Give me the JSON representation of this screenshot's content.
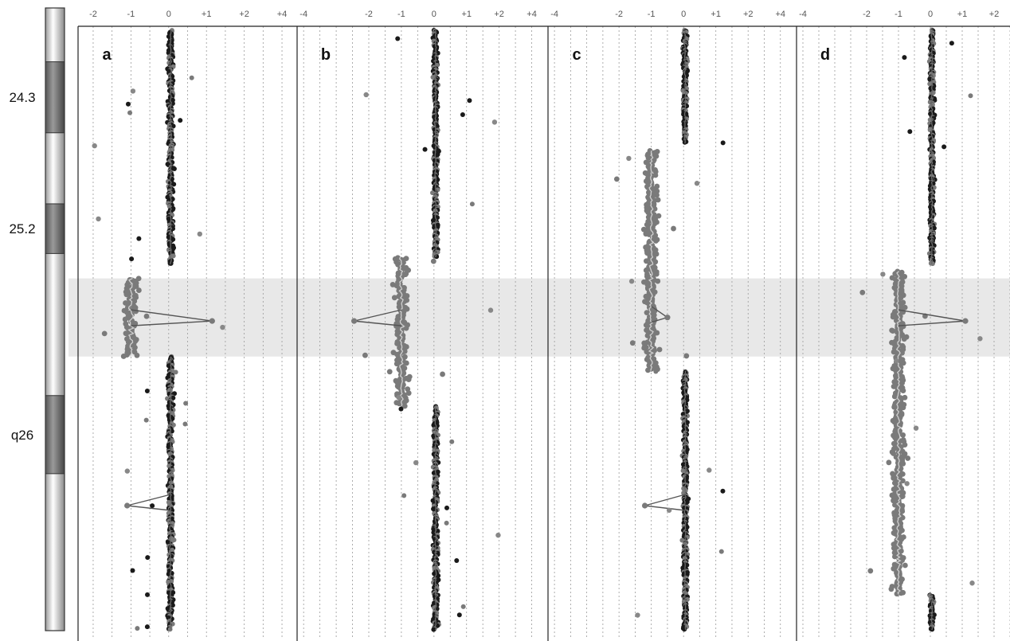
{
  "ideogram": {
    "bands": [
      {
        "name": "24.3",
        "start": 0.5,
        "end": 1.5,
        "stain": "dark"
      },
      {
        "name": "25.2",
        "start": 2.5,
        "end": 3.2,
        "stain": "dark"
      },
      {
        "name": "q26",
        "start": 5.2,
        "end": 6.3,
        "stain": "dark"
      }
    ]
  },
  "highlight": {
    "start": 3.55,
    "end": 4.65
  },
  "colors": {
    "normal_points": "#1a1a1a",
    "aberrant_points": "#7a7a7a",
    "highlight": "#e8e8e8",
    "gridline": "#999999"
  },
  "chart_data": [
    {
      "type": "scatter",
      "panel": "a",
      "ticks": [
        "-2",
        "-1",
        "0",
        "+1",
        "+2",
        "+4"
      ],
      "tick_values": [
        -2,
        -1,
        0,
        1,
        2,
        3
      ],
      "xlim": [
        -2.4,
        3.4
      ],
      "ylim": [
        0,
        8.6
      ],
      "segments": [
        {
          "start": 0.05,
          "end": 3.35,
          "log2": 0.05,
          "state": "normal"
        },
        {
          "start": 3.55,
          "end": 4.65,
          "log2": -1.0,
          "state": "loss"
        },
        {
          "start": 4.65,
          "end": 8.5,
          "log2": 0.05,
          "state": "normal"
        }
      ],
      "spikes": [
        {
          "pos": 4.15,
          "log2": 1.15
        },
        {
          "pos": 6.75,
          "log2": -1.1
        }
      ]
    },
    {
      "type": "scatter",
      "panel": "b",
      "ticks": [
        "-4",
        "-2",
        "-1",
        "0",
        "+1",
        "+2",
        "+4"
      ],
      "tick_values": [
        -4,
        -2,
        -1,
        0,
        1,
        2,
        3
      ],
      "xlim": [
        -4.2,
        3.5
      ],
      "ylim": [
        0,
        8.6
      ],
      "segments": [
        {
          "start": 0.05,
          "end": 3.25,
          "log2": 0.05,
          "state": "normal"
        },
        {
          "start": 3.25,
          "end": 5.35,
          "log2": -1.0,
          "state": "loss"
        },
        {
          "start": 5.35,
          "end": 8.5,
          "log2": 0.05,
          "state": "normal"
        }
      ],
      "spikes": [
        {
          "pos": 4.15,
          "log2": -2.45
        }
      ]
    },
    {
      "type": "scatter",
      "panel": "c",
      "ticks": [
        "-4",
        "-2",
        "-1",
        "0",
        "+1",
        "+2",
        "+4"
      ],
      "tick_values": [
        -4,
        -2,
        -1,
        0,
        1,
        2,
        3
      ],
      "xlim": [
        -4.2,
        3.5
      ],
      "ylim": [
        0,
        8.6
      ],
      "segments": [
        {
          "start": 0.05,
          "end": 1.65,
          "log2": 0.05,
          "state": "normal"
        },
        {
          "start": 1.75,
          "end": 4.85,
          "log2": -1.0,
          "state": "loss"
        },
        {
          "start": 4.85,
          "end": 8.5,
          "log2": 0.05,
          "state": "normal"
        }
      ],
      "spikes": [
        {
          "pos": 4.1,
          "log2": -0.5
        },
        {
          "pos": 6.75,
          "log2": -1.2
        }
      ]
    },
    {
      "type": "scatter",
      "panel": "d",
      "ticks": [
        "-4",
        "-2",
        "-1",
        "0",
        "+1",
        "+2"
      ],
      "tick_values": [
        -4,
        -2,
        -1,
        0,
        1,
        2
      ],
      "xlim": [
        -4.2,
        2.5
      ],
      "ylim": [
        0,
        8.6
      ],
      "segments": [
        {
          "start": 0.05,
          "end": 3.35,
          "log2": 0.05,
          "state": "normal"
        },
        {
          "start": 3.45,
          "end": 8.0,
          "log2": -1.0,
          "state": "loss"
        },
        {
          "start": 8.0,
          "end": 8.5,
          "log2": 0.05,
          "state": "normal"
        }
      ],
      "spikes": [
        {
          "pos": 4.15,
          "log2": 1.1
        }
      ]
    }
  ]
}
